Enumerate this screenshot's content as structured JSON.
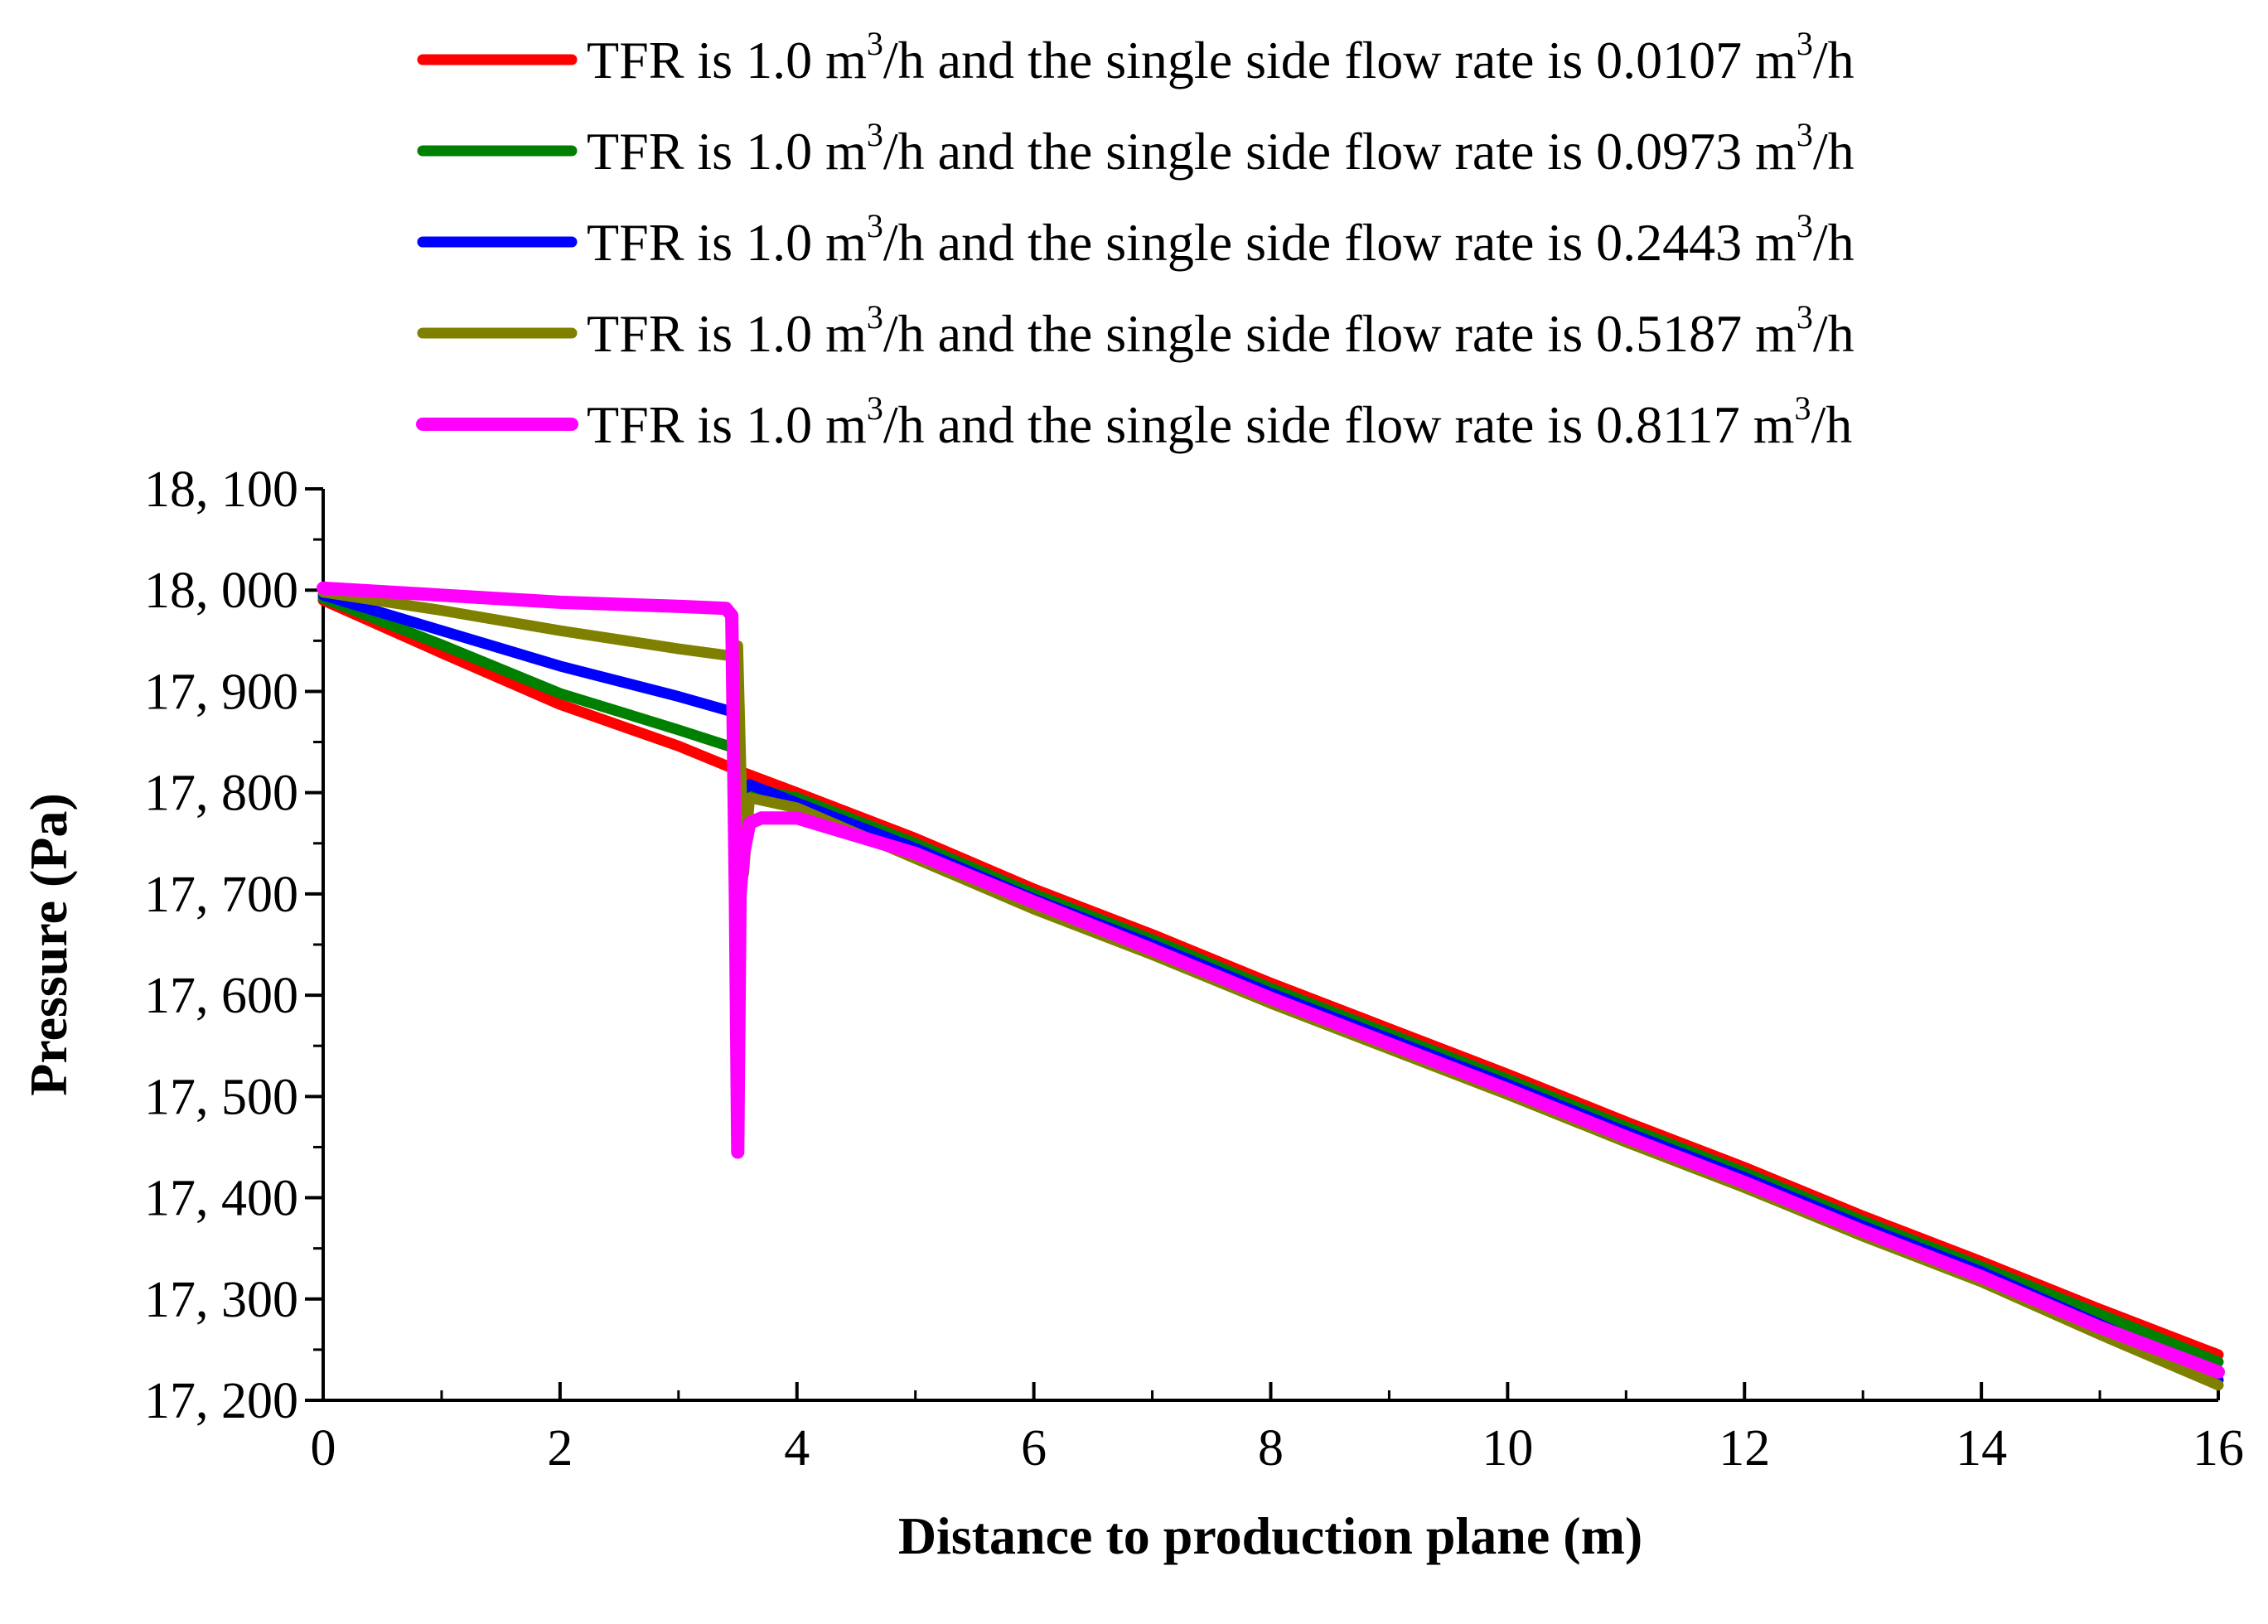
{
  "chart_data": {
    "type": "line",
    "xlabel": "Distance to production plane (m)",
    "ylabel": "Pressure (Pa)",
    "xlim": [
      0,
      16
    ],
    "ylim": [
      17200,
      18100
    ],
    "xticks": [
      0,
      2,
      4,
      6,
      8,
      10,
      12,
      14,
      16
    ],
    "yticks": [
      17200,
      17300,
      17400,
      17500,
      17600,
      17700,
      17800,
      17900,
      18000,
      18100
    ],
    "xtick_labels": [
      "0",
      "2",
      "4",
      "6",
      "8",
      "10",
      "12",
      "14",
      "16"
    ],
    "ytick_labels": [
      "17, 200",
      "17, 300",
      "17, 400",
      "17, 500",
      "17, 600",
      "17, 700",
      "17, 800",
      "17, 900",
      "18, 000",
      "18, 100"
    ],
    "grid": false,
    "legend_position": "top",
    "series": [
      {
        "name": "TFR is 1.0 m3/h and the single side flow rate is 0.0107 m3/h",
        "legend": {
          "pre": "TFR is 1.0 m",
          "mid": "/h and the single side flow rate is 0.0107 m",
          "post": "/h",
          "sup": "3"
        },
        "color": "#ff0000",
        "x": [
          0,
          1,
          2,
          3,
          3.5,
          4,
          5,
          6,
          7,
          8,
          9,
          10,
          11,
          12,
          13,
          14,
          15,
          16
        ],
        "y": [
          17990,
          17938,
          17887,
          17846,
          17822,
          17800,
          17755,
          17705,
          17660,
          17612,
          17567,
          17522,
          17475,
          17430,
          17382,
          17337,
          17290,
          17245
        ]
      },
      {
        "name": "TFR is 1.0 m3/h and the single side flow rate is 0.0973 m3/h",
        "legend": {
          "pre": "TFR is 1.0 m",
          "mid": "/h and the single side flow rate is 0.0973 m",
          "post": "/h",
          "sup": "3"
        },
        "color": "#008000",
        "x": [
          0,
          1,
          2,
          3,
          3.45,
          3.55,
          4,
          5,
          6,
          7,
          8,
          9,
          10,
          11,
          12,
          13,
          14,
          15,
          16
        ],
        "y": [
          17992,
          17946,
          17898,
          17862,
          17845,
          17805,
          17795,
          17750,
          17700,
          17655,
          17607,
          17562,
          17517,
          17470,
          17425,
          17377,
          17332,
          17285,
          17238
        ]
      },
      {
        "name": "TFR is 1.0 m3/h and the single side flow rate is 0.2443 m3/h",
        "legend": {
          "pre": "TFR is 1.0 m",
          "mid": "/h and the single side flow rate is 0.2443 m",
          "post": "/h",
          "sup": "3"
        },
        "color": "#0000ff",
        "x": [
          0,
          1,
          2,
          3,
          3.45,
          3.52,
          3.6,
          4,
          5,
          6,
          7,
          8,
          9,
          10,
          11,
          12,
          13,
          14,
          15,
          16
        ],
        "y": [
          17995,
          17960,
          17925,
          17895,
          17880,
          17800,
          17808,
          17790,
          17745,
          17695,
          17650,
          17602,
          17557,
          17512,
          17465,
          17420,
          17372,
          17327,
          17275,
          17220
        ]
      },
      {
        "name": "TFR is 1.0 m3/h and the single side flow rate is 0.5187 m3/h",
        "legend": {
          "pre": "TFR is 1.0 m",
          "mid": "/h and the single side flow rate is 0.5187 m",
          "post": "/h",
          "sup": "3"
        },
        "color": "#808000",
        "x": [
          0,
          1,
          2,
          3,
          3.45,
          3.5,
          3.55,
          3.6,
          4,
          5,
          6,
          7,
          8,
          9,
          10,
          11,
          12,
          13,
          14,
          15,
          16
        ],
        "y": [
          17998,
          17980,
          17960,
          17942,
          17935,
          17945,
          17720,
          17795,
          17785,
          17735,
          17685,
          17640,
          17592,
          17547,
          17502,
          17455,
          17410,
          17362,
          17317,
          17265,
          17215
        ]
      },
      {
        "name": "TFR is 1.0 m3/h and the single side flow rate is 0.8117 m3/h",
        "legend": {
          "pre": "TFR is 1.0 m",
          "mid": "/h and the single side flow rate is 0.8117 m",
          "post": "/h",
          "sup": "3"
        },
        "color": "#ff00ff",
        "x": [
          0,
          1,
          2,
          3,
          3.4,
          3.45,
          3.48,
          3.5,
          3.52,
          3.55,
          3.6,
          3.7,
          4,
          5,
          6,
          7,
          8,
          9,
          10,
          11,
          12,
          13,
          14,
          15,
          16
        ],
        "y": [
          18002,
          17995,
          17988,
          17984,
          17982,
          17975,
          17700,
          17445,
          17700,
          17740,
          17770,
          17775,
          17775,
          17740,
          17692,
          17645,
          17597,
          17552,
          17507,
          17460,
          17415,
          17367,
          17322,
          17272,
          17228
        ]
      }
    ]
  }
}
